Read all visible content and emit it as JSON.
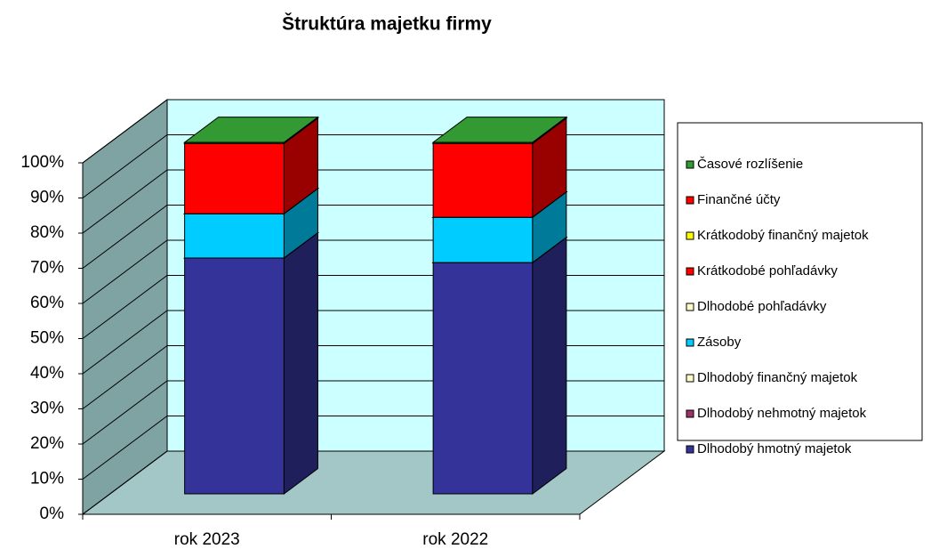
{
  "chart_data": {
    "type": "bar3d_stacked",
    "title": "Štruktúra majetku firmy",
    "categories": [
      "rok 2023",
      "rok 2022"
    ],
    "series": [
      {
        "name": "Dlhodobý hmotný majetok",
        "color": "#333399",
        "values": [
          67.1,
          65.8
        ]
      },
      {
        "name": "Dlhodobý nehmotný majetok",
        "color": "#993366",
        "values": [
          0,
          0
        ]
      },
      {
        "name": "Dlhodobý finančný majetok",
        "color": "#ffffcc",
        "values": [
          0,
          0
        ]
      },
      {
        "name": "Zásoby",
        "color": "#00ccff",
        "values": [
          12.6,
          12.9
        ]
      },
      {
        "name": "Dlhodobé pohľadávky",
        "color": "#ffffcc",
        "values": [
          0,
          0
        ]
      },
      {
        "name": "Krátkodobé pohľadávky",
        "color": "#ff0000",
        "values": [
          0,
          0
        ]
      },
      {
        "name": "Krátkodobý finančný majetok",
        "color": "#ffff00",
        "values": [
          0,
          0
        ]
      },
      {
        "name": "Finančné účty",
        "color": "#ff0000",
        "values": [
          20.0,
          21.0
        ]
      },
      {
        "name": "Časové rozlíšenie",
        "color": "#339933",
        "values": [
          0.3,
          0.3
        ]
      }
    ],
    "ylim": [
      0,
      100
    ],
    "yticks": [
      {
        "value": 0,
        "label": "0%"
      },
      {
        "value": 10,
        "label": "10%"
      },
      {
        "value": 20,
        "label": "20%"
      },
      {
        "value": 30,
        "label": "30%"
      },
      {
        "value": 40,
        "label": "40%"
      },
      {
        "value": 50,
        "label": "50%"
      },
      {
        "value": 60,
        "label": "60%"
      },
      {
        "value": 70,
        "label": "70%"
      },
      {
        "value": 80,
        "label": "80%"
      },
      {
        "value": 90,
        "label": "90%"
      },
      {
        "value": 100,
        "label": "100%"
      }
    ],
    "grid": true,
    "legend": "right"
  }
}
